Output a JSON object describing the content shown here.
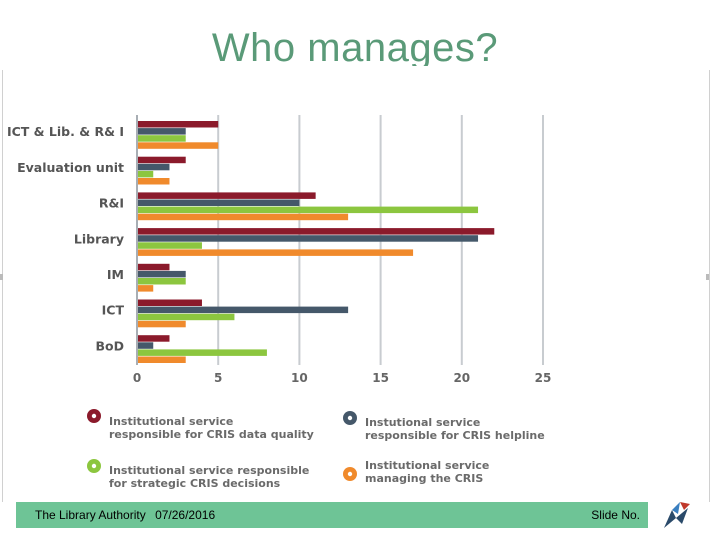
{
  "slide": {
    "title": "Who manages?"
  },
  "footer": {
    "organization": "The Library Authority",
    "date": "07/26/2016",
    "slide_label": "Slide No."
  },
  "colors": {
    "title": "#5a9a78",
    "footer_bar": "#6ec496",
    "data_quality": "#8b1a2b",
    "helpline": "#45586a",
    "strategic": "#8cc63f",
    "managing": "#f08a2c",
    "grid": "#c8ccd0"
  },
  "chart_data": {
    "type": "bar",
    "orientation": "horizontal",
    "title": "",
    "xlabel": "",
    "ylabel": "",
    "xlim": [
      0,
      25
    ],
    "x_ticks": [
      0,
      5,
      10,
      15,
      20,
      25
    ],
    "grid": true,
    "legend_position": "bottom",
    "categories": [
      "ICT & Lib. & R& I",
      "Evaluation unit",
      "R&I",
      "Library",
      "IM",
      "ICT",
      "BoD"
    ],
    "series": [
      {
        "name": "Institutional service responsible for CRIS data quality",
        "legend_lines": [
          "Institutional service",
          "responsible for CRIS data quality"
        ],
        "color": "#8b1a2b",
        "values": [
          5,
          3,
          11,
          22,
          2,
          4,
          2
        ]
      },
      {
        "name": "Instutional service responsible for CRIS helpline",
        "legend_lines": [
          "Instutional service",
          "responsible for CRIS helpline"
        ],
        "color": "#45586a",
        "values": [
          3,
          2,
          10,
          21,
          3,
          13,
          1
        ]
      },
      {
        "name": "Institutional service responsible for strategic CRIS decisions",
        "legend_lines": [
          "Institutional service responsible",
          "for strategic CRIS decisions"
        ],
        "color": "#8cc63f",
        "values": [
          3,
          1,
          21,
          4,
          3,
          6,
          8
        ]
      },
      {
        "name": "Institutional service managing the CRIS",
        "legend_lines": [
          "Institutional service",
          "managing the CRIS"
        ],
        "color": "#f08a2c",
        "values": [
          5,
          2,
          13,
          17,
          1,
          3,
          3
        ]
      }
    ]
  }
}
